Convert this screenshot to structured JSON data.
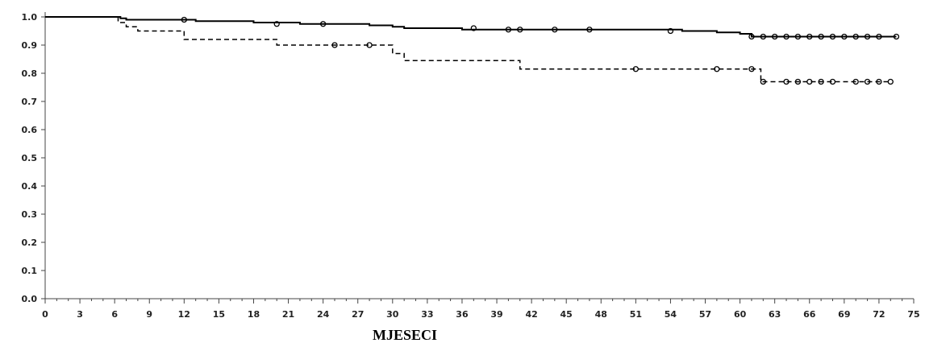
{
  "chart_data": {
    "type": "line",
    "title": "",
    "xlabel": "MJESECI",
    "ylabel": "",
    "xlim": [
      0,
      75
    ],
    "ylim": [
      0,
      1.0
    ],
    "x_ticks": [
      "0",
      "3",
      "6",
      "9",
      "12",
      "15",
      "18",
      "21",
      "24",
      "27",
      "30",
      "33",
      "36",
      "39",
      "42",
      "45",
      "48",
      "51",
      "54",
      "57",
      "60",
      "63",
      "66",
      "69",
      "72",
      "75"
    ],
    "y_ticks": [
      "0.0",
      "0.1",
      "0.2",
      "0.3",
      "0.4",
      "0.5",
      "0.6",
      "0.7",
      "0.8",
      "0.9",
      "1.0"
    ],
    "grid": false,
    "legend": "none",
    "series": [
      {
        "style": "solid",
        "color": "#000000",
        "x": [
          0,
          6,
          6.5,
          7,
          13,
          18,
          22,
          28,
          30,
          31,
          36,
          48,
          55,
          58,
          60,
          61,
          73.5
        ],
        "y": [
          1.0,
          1.0,
          0.995,
          0.99,
          0.985,
          0.98,
          0.975,
          0.97,
          0.965,
          0.96,
          0.955,
          0.955,
          0.95,
          0.945,
          0.94,
          0.93,
          0.93
        ],
        "censor_x": [
          12,
          20,
          24,
          37,
          40,
          41,
          44,
          47,
          54,
          61,
          62,
          63,
          64,
          65,
          66,
          67,
          68,
          69,
          70,
          71,
          72,
          73.5
        ],
        "censor_y": [
          0.99,
          0.975,
          0.975,
          0.96,
          0.955,
          0.955,
          0.955,
          0.955,
          0.95,
          0.93,
          0.93,
          0.93,
          0.93,
          0.93,
          0.93,
          0.93,
          0.93,
          0.93,
          0.93,
          0.93,
          0.93,
          0.93
        ]
      },
      {
        "style": "dashed",
        "color": "#000000",
        "x": [
          0,
          6,
          6.3,
          7,
          8,
          12,
          20,
          26,
          30,
          31,
          41,
          61,
          61.8,
          73
        ],
        "y": [
          1.0,
          1.0,
          0.98,
          0.965,
          0.95,
          0.92,
          0.9,
          0.9,
          0.87,
          0.845,
          0.815,
          0.815,
          0.77,
          0.77
        ],
        "censor_x": [
          25,
          28,
          51,
          58,
          61,
          62,
          64,
          65,
          66,
          67,
          68,
          70,
          71,
          72,
          73
        ],
        "censor_y": [
          0.9,
          0.9,
          0.815,
          0.815,
          0.815,
          0.77,
          0.77,
          0.77,
          0.77,
          0.77,
          0.77,
          0.77,
          0.77,
          0.77,
          0.77
        ]
      }
    ]
  }
}
